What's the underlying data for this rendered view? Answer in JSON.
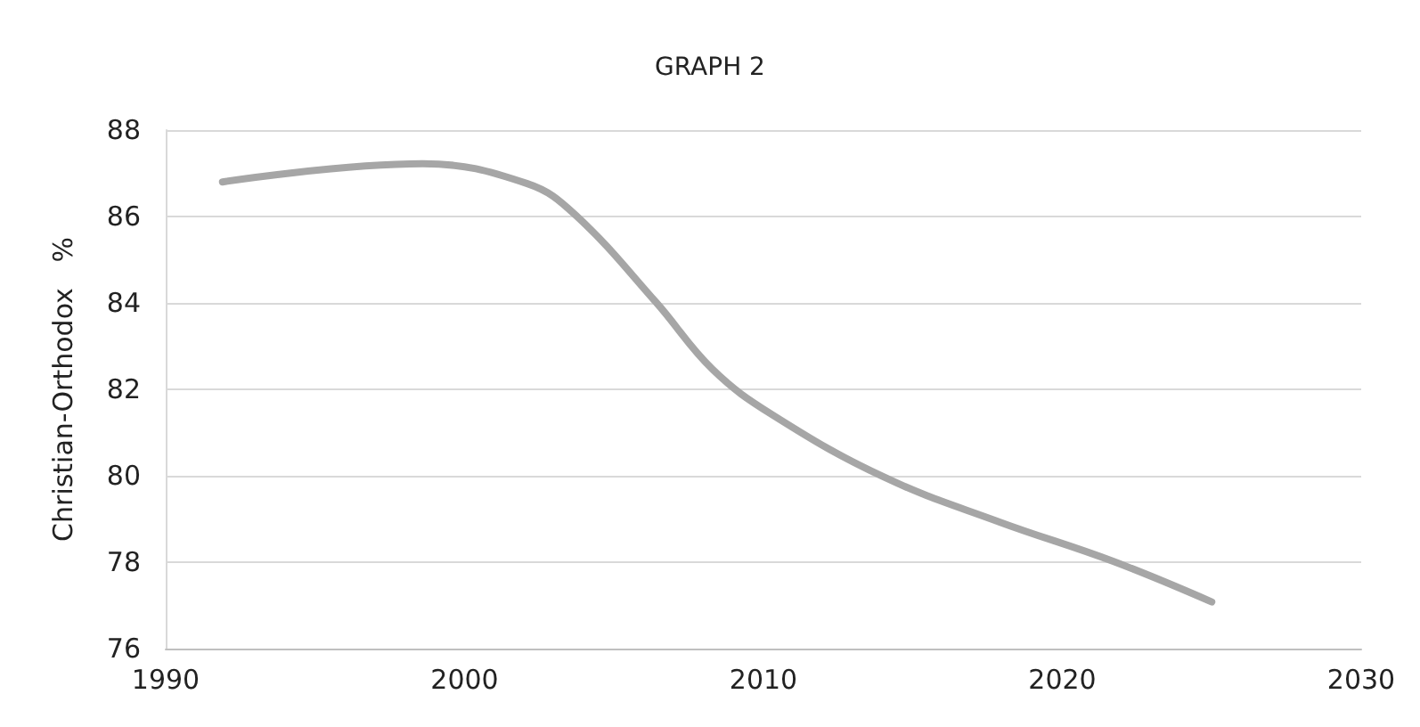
{
  "chart_data": {
    "type": "line",
    "title": "GRAPH 2",
    "ylabel": "Christian-Orthodox   %",
    "x": [
      1991.9,
      1998.6,
      2002.1,
      2003.7,
      2006.4,
      2008.3,
      2010.3,
      2014.0,
      2017.9,
      2021.7,
      2025.0
    ],
    "series": [
      {
        "color": "#a6a6a6",
        "values": [
          86.8,
          87.22,
          86.76,
          86.04,
          84.02,
          82.46,
          81.41,
          79.98,
          78.93,
          78.02,
          77.08
        ]
      }
    ],
    "xlim": [
      1990,
      2030
    ],
    "xticks": [
      1990,
      2000,
      2010,
      2020,
      2030
    ],
    "ylim": [
      76,
      88
    ],
    "yticks": [
      76,
      78,
      80,
      82,
      84,
      86,
      88
    ],
    "grid": "y",
    "marker": "none",
    "line_style": "solid"
  }
}
